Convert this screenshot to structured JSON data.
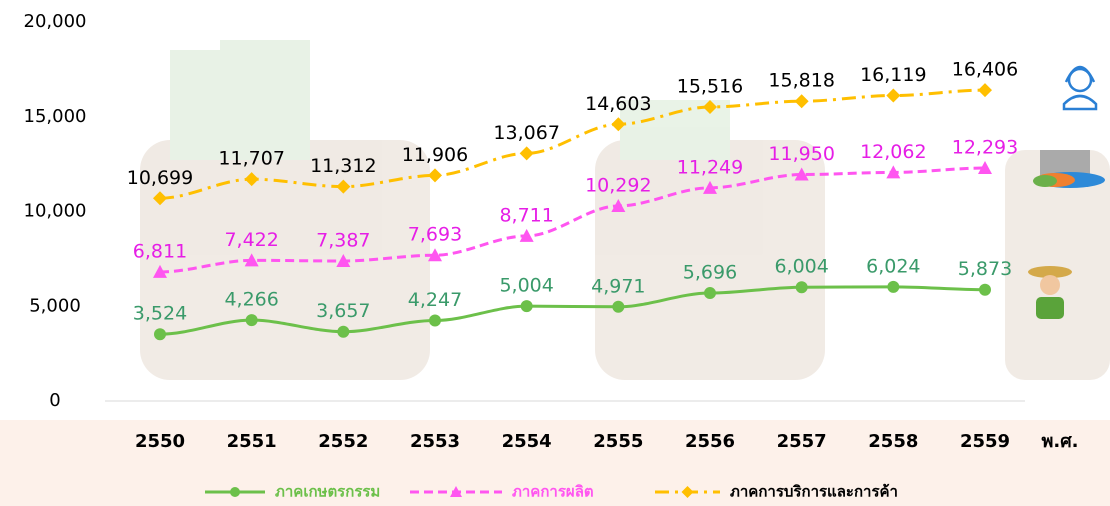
{
  "chart_data": {
    "type": "line",
    "x_label": "พ.ศ.",
    "categories": [
      "2550",
      "2551",
      "2552",
      "2553",
      "2554",
      "2555",
      "2556",
      "2557",
      "2558",
      "2559"
    ],
    "series": [
      {
        "name": "ภาคเกษตรกรรม",
        "color": "#6cc04a",
        "label_color": "#3a9a6a",
        "line_style": "solid",
        "marker": "circle",
        "values": [
          3524,
          4266,
          3657,
          4247,
          5004,
          4971,
          5696,
          6004,
          6024,
          5873
        ],
        "value_labels": [
          "3,524",
          "4,266",
          "3,657",
          "4,247",
          "5,004",
          "4,971",
          "5,696",
          "6,004",
          "6,024",
          "5,873"
        ]
      },
      {
        "name": "ภาคการผลิต",
        "color": "#ff55f0",
        "label_color": "#e61ee6",
        "line_style": "dash",
        "marker": "triangle",
        "values": [
          6811,
          7422,
          7387,
          7693,
          8711,
          10292,
          11249,
          11950,
          12062,
          12293
        ],
        "value_labels": [
          "6,811",
          "7,422",
          "7,387",
          "7,693",
          "8,711",
          "10,292",
          "11,249",
          "11,950",
          "12,062",
          "12,293"
        ]
      },
      {
        "name": "ภาคการบริการและการค้า",
        "color": "#ffbf00",
        "label_color": "#000000",
        "line_style": "dashdot",
        "marker": "diamond",
        "values": [
          10699,
          11707,
          11312,
          11906,
          13067,
          14603,
          15516,
          15818,
          16119,
          16406
        ],
        "value_labels": [
          "10,699",
          "11,707",
          "11,312",
          "11,906",
          "13,067",
          "14,603",
          "15,516",
          "15,818",
          "16,119",
          "16,406"
        ]
      }
    ],
    "ylim": [
      0,
      20000
    ],
    "yticks": [
      0,
      {
        "value": 5000,
        "label": "5,000"
      },
      {
        "value": 10000,
        "label": "10,000"
      },
      {
        "value": 15000,
        "label": "15,000"
      },
      {
        "value": 20000,
        "label": "20,000"
      }
    ],
    "legend": "bottom"
  }
}
